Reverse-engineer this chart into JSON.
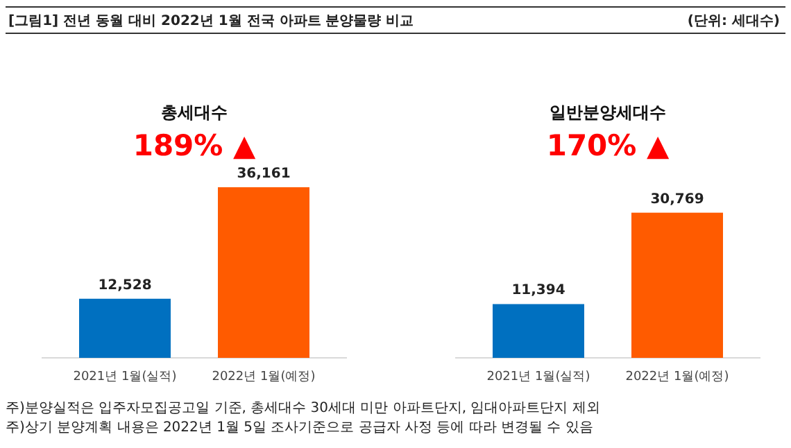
{
  "chart_data": [
    {
      "type": "other",
      "title": "[그림1] 전년 동월 대비 2022년 1월 전국 아파트 분양물량 비교",
      "annotations": [
        "(단위: 세대수)",
        "주)분양실적은 입주자모집공고일 기준, 총세대수 30세대 미만 아파트단지, 임대아파트단지 제외",
        "주)상기 분양계획 내용은 2022년 1월 5일 조사기준으로 공급자 사정 등에 따라 변경될 수 있음"
      ]
    },
    {
      "type": "bar",
      "title": "총세대수",
      "subtitle": "189% ▲",
      "categories": [
        "2021년 1월(실적)",
        "2022년 1월(예정)"
      ],
      "values": [
        12528,
        36161
      ],
      "value_labels": [
        "12,528",
        "36,161"
      ],
      "colors": [
        "#0070c0",
        "#ff5b00"
      ]
    },
    {
      "type": "bar",
      "title": "일반분양세대수",
      "subtitle": "170% ▲",
      "categories": [
        "2021년 1월(실적)",
        "2022년 1월(예정)"
      ],
      "values": [
        11394,
        30769
      ],
      "value_labels": [
        "11,394",
        "30,769"
      ],
      "colors": [
        "#0070c0",
        "#ff5b00"
      ]
    }
  ]
}
